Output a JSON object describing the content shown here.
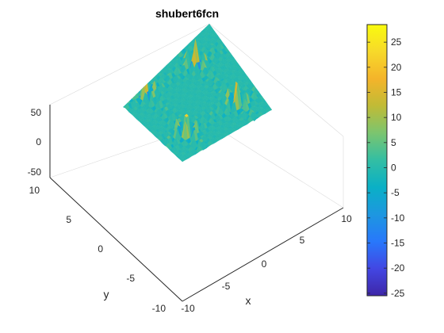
{
  "chart_data": {
    "type": "surface",
    "title": "shubert6fcn",
    "xlabel": "x",
    "ylabel": "y",
    "zlabel": "",
    "xlim": [
      -10,
      10
    ],
    "ylim": [
      -10,
      10
    ],
    "zlim": [
      -50,
      50
    ],
    "x_ticks": [
      "-10",
      "-5",
      "0",
      "5",
      "10"
    ],
    "y_ticks": [
      "-10",
      "-5",
      "0",
      "5",
      "10"
    ],
    "z_ticks": [
      "-50",
      "0",
      "50"
    ],
    "grid": true,
    "colormap": "parula",
    "colorbar": {
      "range": [
        -25.5,
        28.5
      ],
      "ticks": [
        "25",
        "20",
        "15",
        "10",
        "5",
        "0",
        "-5",
        "-10",
        "-15",
        "-20",
        "-25"
      ],
      "tick_values": [
        25,
        20,
        15,
        10,
        5,
        0,
        -5,
        -10,
        -15,
        -20,
        -25
      ],
      "colors": [
        "#3e26a8",
        "#4247e3",
        "#2878fb",
        "#1d97e0",
        "#0ab0c6",
        "#33bea3",
        "#7bc56f",
        "#c0bb36",
        "#f4b42a",
        "#f7d92a",
        "#f9fb0e"
      ]
    }
  }
}
